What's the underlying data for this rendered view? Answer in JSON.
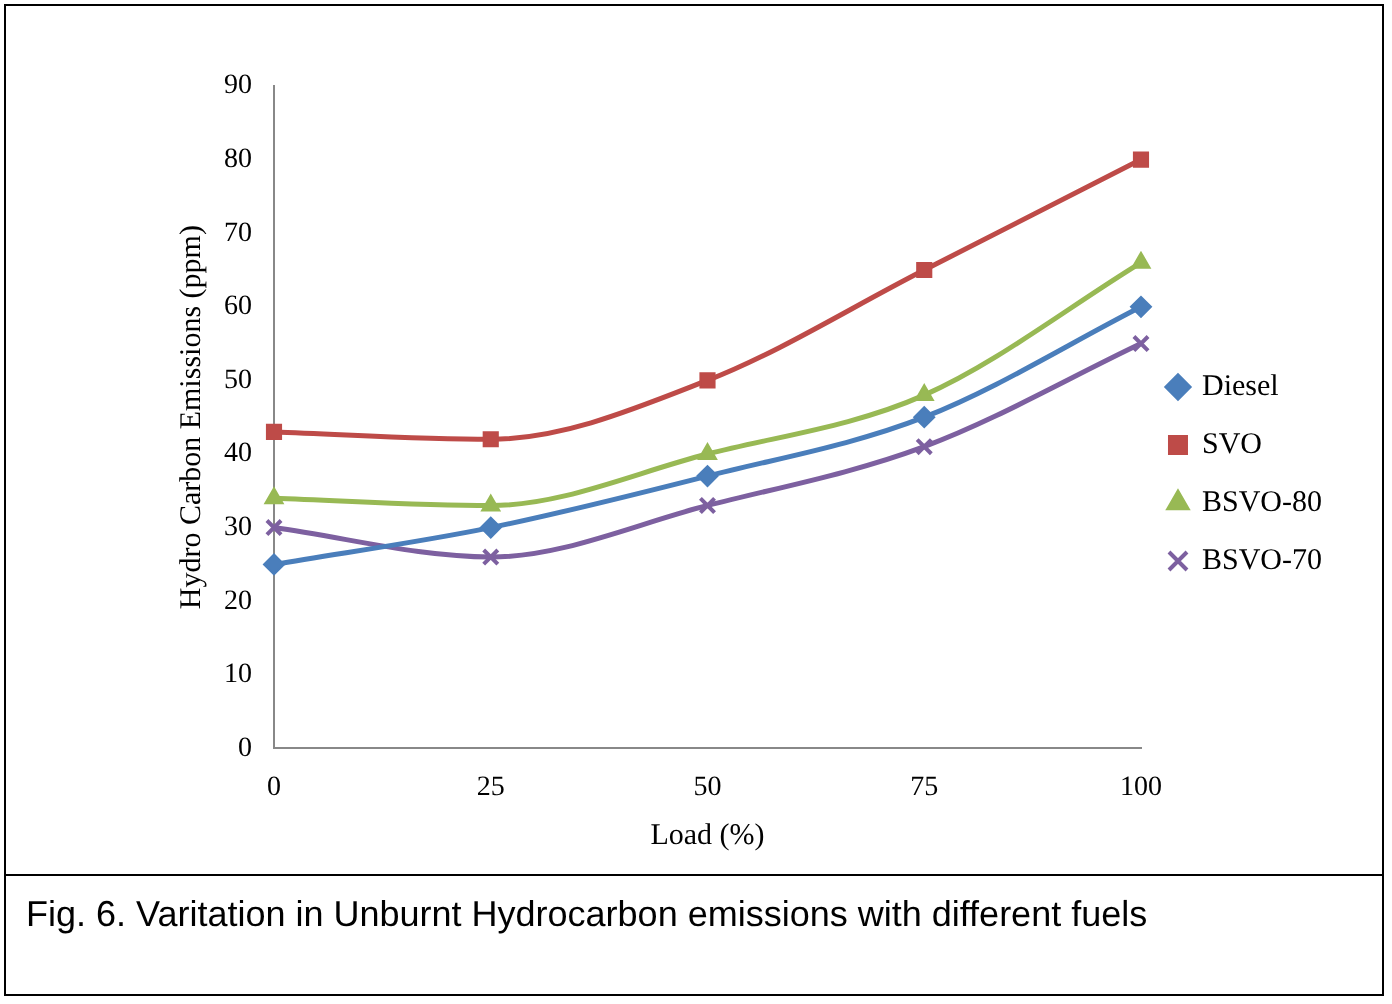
{
  "chart_data": {
    "type": "line",
    "xlabel": "Load (%)",
    "ylabel": "Hydro Carbon Emissions (ppm)",
    "categories": [
      "0",
      "25",
      "50",
      "75",
      "100"
    ],
    "series": [
      {
        "name": "Diesel",
        "color": "#4a7ebb",
        "marker": "diamond",
        "values": [
          25,
          30,
          37,
          45,
          60
        ]
      },
      {
        "name": "SVO",
        "color": "#be4b48",
        "marker": "square",
        "values": [
          43,
          42,
          50,
          65,
          80
        ]
      },
      {
        "name": "BSVO-80",
        "color": "#98b954",
        "marker": "triangle",
        "values": [
          34,
          33,
          40,
          48,
          66
        ]
      },
      {
        "name": "BSVO-70",
        "color": "#7d60a0",
        "marker": "cross",
        "values": [
          30,
          26,
          33,
          41,
          55
        ]
      }
    ],
    "ylim": [
      0,
      90
    ],
    "yticks": [
      0,
      10,
      20,
      30,
      40,
      50,
      60,
      70,
      80,
      90
    ],
    "legend": "right",
    "annotations": [
      "Fig. 6. Varitation in Unburnt Hydrocarbon emissions with different fuels"
    ]
  }
}
